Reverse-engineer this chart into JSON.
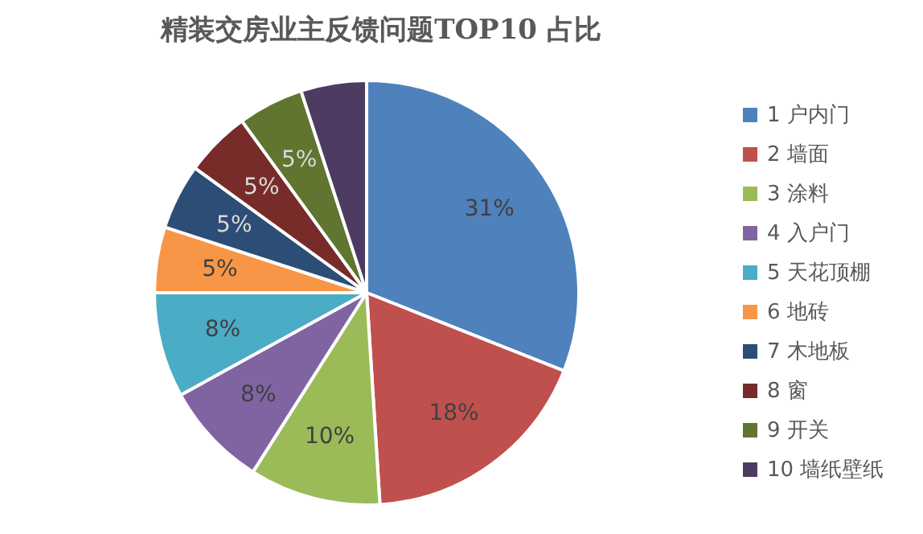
{
  "chart_data": {
    "type": "pie",
    "title": "精装交房业主反馈问题TOP10 占比",
    "categories": [
      "1 户内门",
      "2 墙面",
      "3 涂料",
      "4 入户门",
      "5 天花顶棚",
      "6 地砖",
      "7 木地板",
      "8 窗",
      "9 开关",
      "10 墙纸壁纸"
    ],
    "values": [
      31,
      18,
      10,
      8,
      8,
      5,
      5,
      5,
      5,
      5
    ],
    "value_labels": [
      "31%",
      "18%",
      "10%",
      "8%",
      "8%",
      "5%",
      "5%",
      "5%",
      "5%",
      null
    ],
    "colors": [
      "#4f81bd",
      "#c0504d",
      "#9bbb59",
      "#8064a2",
      "#4bacc6",
      "#f79646",
      "#2c4d75",
      "#772c2a",
      "#5f7530",
      "#4d3b62"
    ],
    "legend": "right"
  }
}
